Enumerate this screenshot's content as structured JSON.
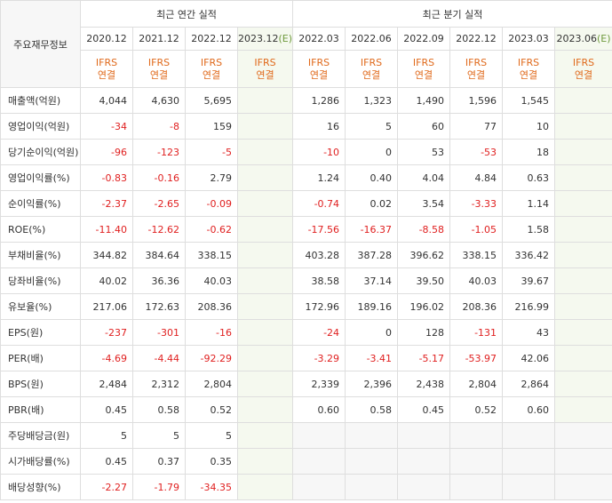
{
  "header": {
    "left_label": "주요재무정보",
    "annual_title": "최근 연간 실적",
    "quarterly_title": "최근 분기 실적",
    "annual_periods": [
      "2020.12",
      "2021.12",
      "2022.12",
      "2023.12(E)"
    ],
    "quarterly_periods": [
      "2022.03",
      "2022.06",
      "2022.09",
      "2022.12",
      "2023.03",
      "2023.06(E)"
    ],
    "ifrs_line1": "IFRS",
    "ifrs_line2": "연결"
  },
  "rows": [
    {
      "label": "매출액(억원)",
      "annual": [
        "4,044",
        "4,630",
        "5,695",
        ""
      ],
      "quarterly": [
        "1,286",
        "1,323",
        "1,490",
        "1,596",
        "1,545",
        ""
      ]
    },
    {
      "label": "영업이익(억원)",
      "annual": [
        "-34",
        "-8",
        "159",
        ""
      ],
      "quarterly": [
        "16",
        "5",
        "60",
        "77",
        "10",
        ""
      ]
    },
    {
      "label": "당기순이익(억원)",
      "annual": [
        "-96",
        "-123",
        "-5",
        ""
      ],
      "quarterly": [
        "-10",
        "0",
        "53",
        "-53",
        "18",
        ""
      ]
    },
    {
      "label": "영업이익률(%)",
      "annual": [
        "-0.83",
        "-0.16",
        "2.79",
        ""
      ],
      "quarterly": [
        "1.24",
        "0.40",
        "4.04",
        "4.84",
        "0.63",
        ""
      ]
    },
    {
      "label": "순이익률(%)",
      "annual": [
        "-2.37",
        "-2.65",
        "-0.09",
        ""
      ],
      "quarterly": [
        "-0.74",
        "0.02",
        "3.54",
        "-3.33",
        "1.14",
        ""
      ]
    },
    {
      "label": "ROE(%)",
      "annual": [
        "-11.40",
        "-12.62",
        "-0.62",
        ""
      ],
      "quarterly": [
        "-17.56",
        "-16.37",
        "-8.58",
        "-1.05",
        "1.58",
        ""
      ]
    },
    {
      "label": "부채비율(%)",
      "annual": [
        "344.82",
        "384.64",
        "338.15",
        ""
      ],
      "quarterly": [
        "403.28",
        "387.28",
        "396.62",
        "338.15",
        "336.42",
        ""
      ]
    },
    {
      "label": "당좌비율(%)",
      "annual": [
        "40.02",
        "36.36",
        "40.03",
        ""
      ],
      "quarterly": [
        "38.58",
        "37.14",
        "39.50",
        "40.03",
        "39.67",
        ""
      ]
    },
    {
      "label": "유보율(%)",
      "annual": [
        "217.06",
        "172.63",
        "208.36",
        ""
      ],
      "quarterly": [
        "172.96",
        "189.16",
        "196.02",
        "208.36",
        "216.99",
        ""
      ]
    },
    {
      "label": "EPS(원)",
      "annual": [
        "-237",
        "-301",
        "-16",
        ""
      ],
      "quarterly": [
        "-24",
        "0",
        "128",
        "-131",
        "43",
        ""
      ]
    },
    {
      "label": "PER(배)",
      "annual": [
        "-4.69",
        "-4.44",
        "-92.29",
        ""
      ],
      "quarterly": [
        "-3.29",
        "-3.41",
        "-5.17",
        "-53.97",
        "42.06",
        ""
      ]
    },
    {
      "label": "BPS(원)",
      "annual": [
        "2,484",
        "2,312",
        "2,804",
        ""
      ],
      "quarterly": [
        "2,339",
        "2,396",
        "2,438",
        "2,804",
        "2,864",
        ""
      ]
    },
    {
      "label": "PBR(배)",
      "annual": [
        "0.45",
        "0.58",
        "0.52",
        ""
      ],
      "quarterly": [
        "0.60",
        "0.58",
        "0.45",
        "0.52",
        "0.60",
        ""
      ]
    },
    {
      "label": "주당배당금(원)",
      "annual": [
        "5",
        "5",
        "5",
        ""
      ],
      "quarterly": [
        "",
        "",
        "",
        "",
        "",
        ""
      ]
    },
    {
      "label": "시가배당률(%)",
      "annual": [
        "0.45",
        "0.37",
        "0.35",
        ""
      ],
      "quarterly": [
        "",
        "",
        "",
        "",
        "",
        ""
      ]
    },
    {
      "label": "배당성향(%)",
      "annual": [
        "-2.27",
        "-1.79",
        "-34.35",
        ""
      ],
      "quarterly": [
        "",
        "",
        "",
        "",
        "",
        ""
      ]
    }
  ]
}
